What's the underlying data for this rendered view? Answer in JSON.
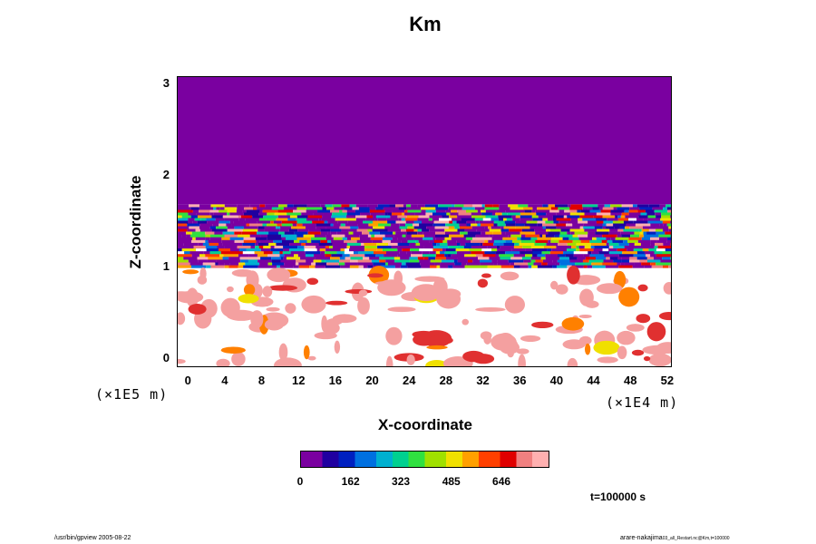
{
  "chart_data": {
    "type": "heatmap",
    "title": "Km",
    "xlabel": "X-coordinate",
    "ylabel": "Z-coordinate",
    "x_ticks": [
      "0",
      "4",
      "8",
      "12",
      "16",
      "20",
      "24",
      "28",
      "32",
      "36",
      "40",
      "44",
      "48",
      "52"
    ],
    "x_tick_values": [
      0,
      4,
      8,
      12,
      16,
      20,
      24,
      28,
      32,
      36,
      40,
      44,
      48,
      52
    ],
    "x_unit": "(×1E4 m)",
    "xlim": [
      -1.2,
      52.5
    ],
    "y_ticks": [
      "0",
      "1",
      "2",
      "3"
    ],
    "y_tick_values": [
      0,
      1,
      2,
      3
    ],
    "y_unit": "(×1E5 m)",
    "ylim": [
      -0.1,
      3.08
    ],
    "colorbar": {
      "ticks": [
        "0",
        "162",
        "323",
        "485",
        "646"
      ],
      "tick_values": [
        0,
        162,
        323,
        485,
        646
      ],
      "range": [
        0,
        800
      ],
      "colors": [
        "#7a00a0",
        "#2000a0",
        "#0020c0",
        "#0070e0",
        "#00b0d0",
        "#00d090",
        "#30e040",
        "#a0e000",
        "#f0e000",
        "#ffa000",
        "#ff4000",
        "#e00000",
        "#f08080",
        "#ffb0b0"
      ]
    },
    "regions": [
      {
        "z_range": [
          1.68,
          3.08
        ],
        "value": 0,
        "description_level": "uniform"
      },
      {
        "z_range": [
          1.38,
          1.68
        ],
        "value_range": [
          0,
          800
        ],
        "description_level": "banded"
      },
      {
        "z_range": [
          0.98,
          1.38
        ],
        "value_range": [
          0,
          800
        ],
        "description_level": "banded"
      },
      {
        "z_range": [
          -0.1,
          0.98
        ],
        "value_range": [
          600,
          800
        ],
        "description_level": "patchy"
      }
    ],
    "annotations": [
      "t=100000 s"
    ]
  },
  "footer": {
    "left": "/usr/bin/gpview 2005-08-22",
    "right": "arare-nakajima",
    "right_small": "03_all_Restart.nc@Km,t=100000"
  },
  "colors": {
    "background": "#ffffff",
    "field_uniform": "#7a00a0",
    "axis": "#000000"
  }
}
